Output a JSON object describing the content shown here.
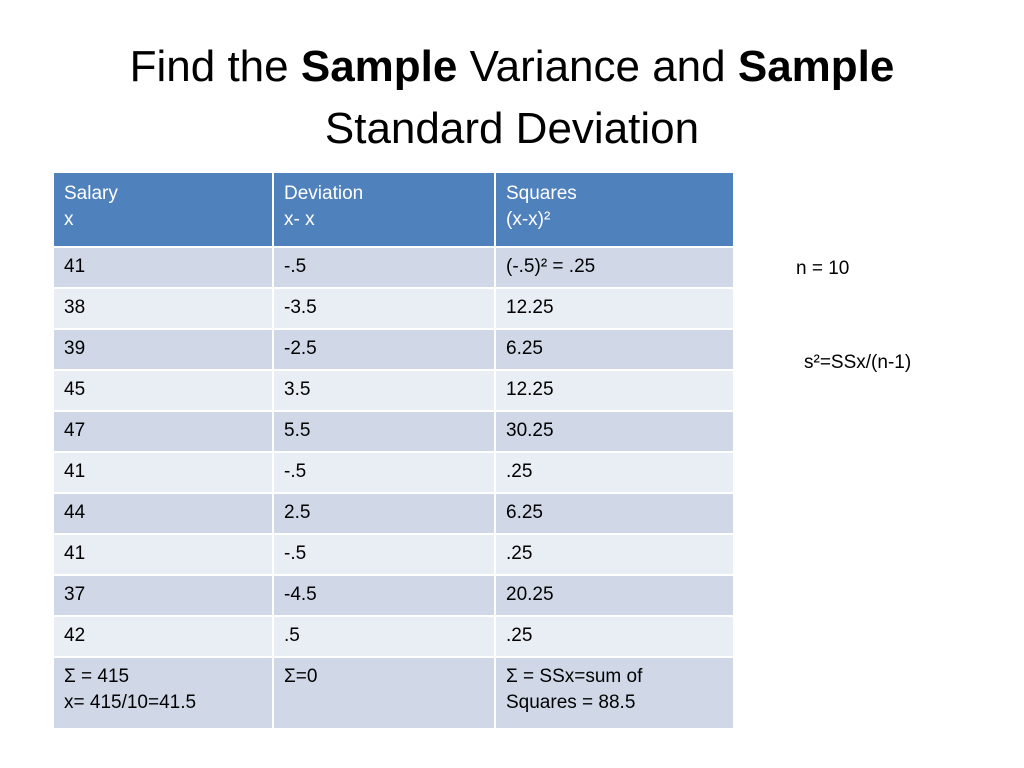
{
  "title": {
    "line1": [
      "Find the ",
      "Sample",
      " Variance and ",
      "Sample"
    ],
    "line2": "Standard Deviation"
  },
  "table": {
    "header": [
      [
        "Salary",
        "x"
      ],
      [
        "Deviation",
        "x- x"
      ],
      [
        "Squares",
        "(x-x)²"
      ]
    ],
    "rows": [
      [
        "41",
        "-.5",
        "(-.5)² = .25"
      ],
      [
        "38",
        "-3.5",
        "12.25"
      ],
      [
        "39",
        "-2.5",
        "6.25"
      ],
      [
        "45",
        "3.5",
        "12.25"
      ],
      [
        "47",
        "5.5",
        "30.25"
      ],
      [
        "41",
        "-.5",
        ".25"
      ],
      [
        "44",
        "2.5",
        "6.25"
      ],
      [
        "41",
        "-.5",
        ".25"
      ],
      [
        "37",
        "-4.5",
        "20.25"
      ],
      [
        "42",
        ".5",
        ".25"
      ]
    ],
    "totals": [
      [
        "Σ = 415",
        "x= 415/10=41.5"
      ],
      [
        "Σ=0"
      ],
      [
        "Σ = SSx=sum of",
        "Squares = 88.5"
      ]
    ]
  },
  "notes": {
    "n": "n = 10",
    "formula": "s²=SSx/(n-1)"
  }
}
